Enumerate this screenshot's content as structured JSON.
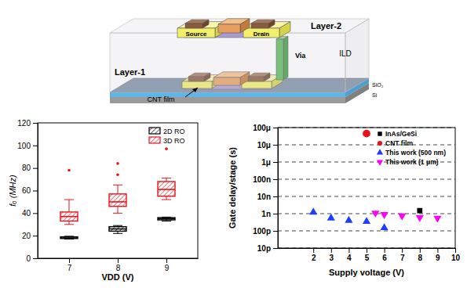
{
  "diagram": {
    "labels": [
      "Layer-2",
      "Source",
      "Drain",
      "Via",
      "ILD",
      "Layer-1",
      "CNT film",
      "SiO₂",
      "Si"
    ]
  },
  "chart_data": [
    {
      "type": "box",
      "x_label": "VDD (V)",
      "y_label": "fₒ (MHz)",
      "categories": [
        "7",
        "8",
        "9"
      ],
      "ylim": [
        0,
        120
      ],
      "yticks": [
        0,
        20,
        40,
        60,
        80,
        100,
        120
      ],
      "legend": "upper right",
      "grid": false,
      "series": [
        {
          "name": "2D RO",
          "color": "#000000",
          "values": [
            {
              "whisker_low": 17,
              "q1": 17.5,
              "median": 18,
              "q3": 19,
              "whisker_high": 19.5,
              "outliers": []
            },
            {
              "whisker_low": 22,
              "q1": 24,
              "median": 26,
              "q3": 28,
              "whisker_high": 29,
              "outliers": []
            },
            {
              "whisker_low": 33,
              "q1": 34,
              "median": 35,
              "q3": 36,
              "whisker_high": 36.5,
              "outliers": []
            }
          ]
        },
        {
          "name": "3D RO",
          "color": "#e8141c",
          "values": [
            {
              "whisker_low": 30,
              "q1": 33,
              "median": 37,
              "q3": 41,
              "whisker_high": 52,
              "outliers": [
                78
              ]
            },
            {
              "whisker_low": 40,
              "q1": 46,
              "median": 50,
              "q3": 57,
              "whisker_high": 65,
              "outliers": [
                74,
                84
              ]
            },
            {
              "whisker_low": 52,
              "q1": 55,
              "median": 61,
              "q3": 68,
              "whisker_high": 71,
              "outliers": [
                97
              ]
            }
          ]
        }
      ]
    },
    {
      "type": "scatter",
      "x_label": "Supply voltage (V)",
      "y_label": "Gate delay/stage (s)",
      "log": "y",
      "grid": true,
      "legend": "upper right",
      "xlim": [
        0,
        10
      ],
      "xticks": [
        2,
        3,
        4,
        5,
        6,
        7,
        8,
        9,
        10
      ],
      "ylim": [
        1e-11,
        0.0001
      ],
      "yticks": [
        {
          "value": 1e-11,
          "label": "10p"
        },
        {
          "value": 1e-10,
          "label": "100p"
        },
        {
          "value": 1e-09,
          "label": "1n"
        },
        {
          "value": 1e-08,
          "label": "10n"
        },
        {
          "value": 1e-07,
          "label": "100n"
        },
        {
          "value": 1e-06,
          "label": "1μ"
        },
        {
          "value": 1e-05,
          "label": "10μ"
        },
        {
          "value": 0.0001,
          "label": "100μ"
        }
      ],
      "series": [
        {
          "name": "InAs/GeSi",
          "color": "#000000",
          "marker": "square",
          "x": [
            8
          ],
          "values": [
            1.5e-09
          ]
        },
        {
          "name": "CNT film",
          "color": "#e8141c",
          "marker": "circle",
          "x": [
            5
          ],
          "values": [
            4.5e-05
          ]
        },
        {
          "name": "This work (500 nm)",
          "color": "#1e3cff",
          "marker": "triangle-up",
          "x": [
            2,
            3,
            4,
            5,
            6
          ],
          "values": [
            1.2e-09,
            5.5e-10,
            4e-10,
            3.5e-10,
            1.5e-10
          ]
        },
        {
          "name": "This work (1 μm)",
          "color": "#ff00ff",
          "marker": "triangle-down",
          "x": [
            5.5,
            6,
            7,
            8,
            9
          ],
          "values": [
            1.1e-09,
            9e-10,
            7.5e-10,
            6e-10,
            5.5e-10
          ]
        }
      ]
    }
  ]
}
